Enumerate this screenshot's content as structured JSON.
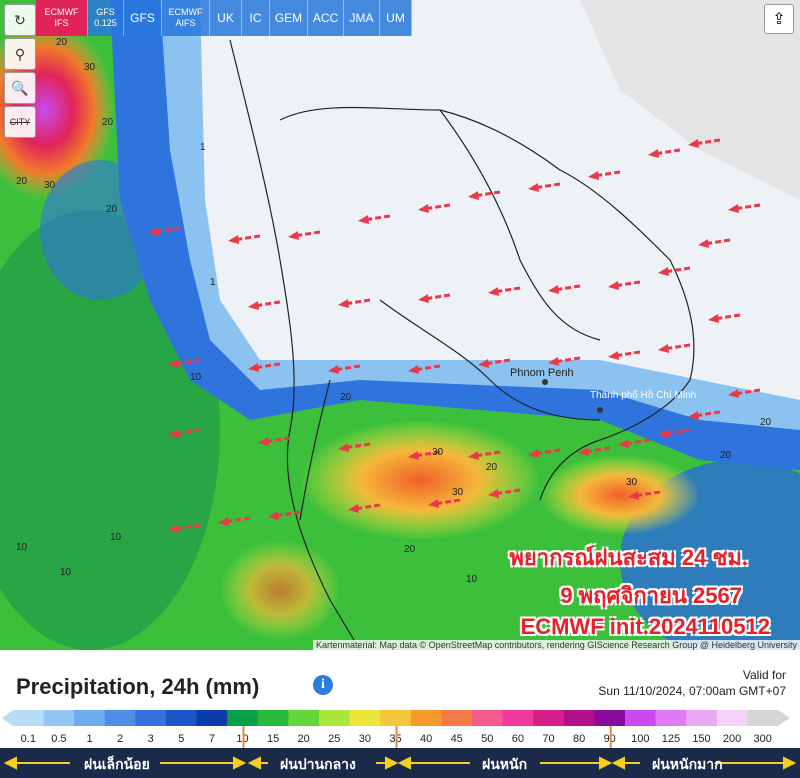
{
  "models": [
    "ECMWF IFS",
    "GFS 0.125",
    "GFS",
    "ECMWF AIFS",
    "UK",
    "IC",
    "GEM",
    "ACC",
    "JMA",
    "UM"
  ],
  "tools": {
    "city": "CITY"
  },
  "map_labels": {
    "phnom_penh": "Phnom Penh",
    "hcm": "Thành phố Hồ Chí Minh",
    "numbers": [
      "20",
      "30",
      "20",
      "30",
      "10",
      "10",
      "10",
      "20",
      "30",
      "20",
      "30",
      "20",
      "10",
      "10",
      "20",
      "20",
      "30",
      "20",
      "20",
      "1",
      "1"
    ]
  },
  "overlay": {
    "line1": "พยากรณ์ฝนสะสม 24 ชม.",
    "line2": "9 พฤศจิกายน 2567",
    "line3": "ECMWF init.2024110512"
  },
  "attribution": "Kartenmaterial: Map data © OpenStreetMap contributors, rendering GIScience Research Group @ Heidelberg University",
  "legend": {
    "title": "Precipitation, 24h (mm)",
    "info": "i",
    "valid_label": "Valid for",
    "valid_time": "Sun 11/10/2024, 07:00am GMT+07",
    "labels": [
      "0.1",
      "0.5",
      "1",
      "2",
      "3",
      "5",
      "7",
      "10",
      "15",
      "20",
      "25",
      "30",
      "35",
      "40",
      "45",
      "50",
      "60",
      "70",
      "80",
      "90",
      "100",
      "125",
      "150",
      "200",
      "300"
    ],
    "colors": [
      "#b9dcf6",
      "#93c6f2",
      "#6eaaee",
      "#4d8ee6",
      "#3371dd",
      "#1c55c6",
      "#0c3ca8",
      "#0aa04a",
      "#2ab83a",
      "#62d63a",
      "#aae63c",
      "#ece63c",
      "#f5c83c",
      "#f59a2c",
      "#f47a4a",
      "#f45a8a",
      "#f03aa0",
      "#d81e8a",
      "#b0108a",
      "#8a0a9e",
      "#c84af0",
      "#e07af5",
      "#eaa8f5",
      "#f2d2f6",
      "#d6d6d6"
    ],
    "categories": [
      "ฝนเล็กน้อย",
      "ฝนปานกลาง",
      "ฝนหนัก",
      "ฝนหนักมาก"
    ]
  }
}
